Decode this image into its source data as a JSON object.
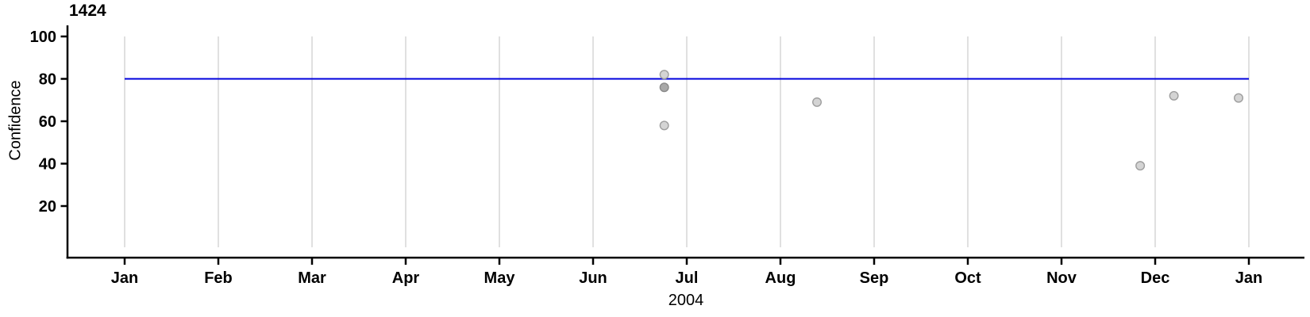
{
  "chart_data": {
    "type": "scatter",
    "panel_title": "1424",
    "ylabel": "Confidence",
    "xlabel": "2004",
    "x_tick_labels": [
      "Jan",
      "Feb",
      "Mar",
      "Apr",
      "May",
      "Jun",
      "Jul",
      "Aug",
      "Sep",
      "Oct",
      "Nov",
      "Dec",
      "Jan"
    ],
    "y_ticks": [
      20,
      40,
      60,
      80,
      100
    ],
    "ylim": [
      -5,
      105
    ],
    "xlim_months": [
      0,
      12
    ],
    "grid": "vertical-only",
    "legend": "none",
    "reference_line": {
      "value": 80,
      "span_months": [
        0,
        12
      ],
      "color": "#0000dd"
    },
    "points": [
      {
        "date": "2004-06-24",
        "month_offset": 5.76,
        "confidence": 82,
        "overlap_count": 1
      },
      {
        "date": "2004-06-24",
        "month_offset": 5.76,
        "confidence": 76,
        "overlap_count": 2
      },
      {
        "date": "2004-06-24",
        "month_offset": 5.76,
        "confidence": 58,
        "overlap_count": 1
      },
      {
        "date": "2004-08-13",
        "month_offset": 7.39,
        "confidence": 69,
        "overlap_count": 1
      },
      {
        "date": "2004-11-26",
        "month_offset": 10.84,
        "confidence": 39,
        "overlap_count": 1
      },
      {
        "date": "2004-12-07",
        "month_offset": 11.2,
        "confidence": 72,
        "overlap_count": 1
      },
      {
        "date": "2004-12-28",
        "month_offset": 11.89,
        "confidence": 71,
        "overlap_count": 1
      }
    ],
    "colors": {
      "background": "#ffffff",
      "axis": "#000000",
      "text": "#000000",
      "gridline": "#dcdcdc",
      "reference_line": "#0000dd",
      "point_fill": "#d4d4d4",
      "point_stroke": "#9e9e9e",
      "point_fill_overlap": "#a8a8a8",
      "point_stroke_overlap": "#8a8a8a"
    }
  }
}
